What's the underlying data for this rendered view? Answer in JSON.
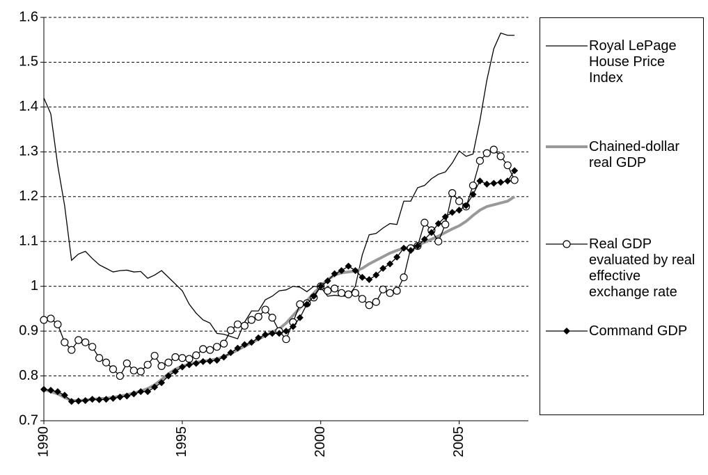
{
  "chart_data": {
    "type": "line",
    "x": [
      1990,
      1990.25,
      1990.5,
      1990.75,
      1991,
      1991.25,
      1991.5,
      1991.75,
      1992,
      1992.25,
      1992.5,
      1992.75,
      1993,
      1993.25,
      1993.5,
      1993.75,
      1994,
      1994.25,
      1994.5,
      1994.75,
      1995,
      1995.25,
      1995.5,
      1995.75,
      1996,
      1996.25,
      1996.5,
      1996.75,
      1997,
      1997.25,
      1997.5,
      1997.75,
      1998,
      1998.25,
      1998.5,
      1998.75,
      1999,
      1999.25,
      1999.5,
      1999.75,
      2000,
      2000.25,
      2000.5,
      2000.75,
      2001,
      2001.25,
      2001.5,
      2001.75,
      2002,
      2002.25,
      2002.5,
      2002.75,
      2003,
      2003.25,
      2003.5,
      2003.75,
      2004,
      2004.25,
      2004.5,
      2004.75,
      2005,
      2005.25,
      2005.5,
      2005.75,
      2006,
      2006.25,
      2006.5,
      2006.75,
      2007
    ],
    "series": [
      {
        "name": "Royal LePage House Price Index",
        "color": "#000000",
        "marker": "none",
        "width": 1.3,
        "values": [
          1.42,
          1.385,
          1.27,
          1.18,
          1.058,
          1.072,
          1.078,
          1.062,
          1.048,
          1.04,
          1.032,
          1.035,
          1.036,
          1.032,
          1.033,
          1.018,
          1.025,
          1.035,
          1.02,
          1.005,
          0.99,
          0.96,
          0.94,
          0.925,
          0.918,
          0.895,
          0.893,
          0.888,
          0.883,
          0.92,
          0.945,
          0.945,
          0.97,
          0.978,
          0.99,
          0.992,
          1.0,
          0.998,
          0.988,
          1.0,
          0.998,
          0.978,
          0.98,
          0.978,
          0.978,
          1.0,
          1.07,
          1.115,
          1.118,
          1.13,
          1.14,
          1.138,
          1.19,
          1.19,
          1.22,
          1.225,
          1.24,
          1.25,
          1.255,
          1.275,
          1.302,
          1.29,
          1.295,
          1.37,
          1.46,
          1.53,
          1.565,
          1.56,
          1.56
        ]
      },
      {
        "name": "Chained-dollar real GDP",
        "color": "#999999",
        "marker": "none",
        "width": 4,
        "values": [
          0.77,
          0.765,
          0.76,
          0.752,
          0.745,
          0.745,
          0.746,
          0.748,
          0.749,
          0.75,
          0.752,
          0.755,
          0.758,
          0.762,
          0.766,
          0.772,
          0.78,
          0.792,
          0.805,
          0.815,
          0.822,
          0.826,
          0.83,
          0.833,
          0.835,
          0.838,
          0.843,
          0.85,
          0.858,
          0.866,
          0.874,
          0.882,
          0.89,
          0.898,
          0.905,
          0.918,
          0.935,
          0.952,
          0.968,
          0.985,
          1.0,
          1.015,
          1.025,
          1.03,
          1.032,
          1.034,
          1.04,
          1.05,
          1.058,
          1.066,
          1.074,
          1.08,
          1.085,
          1.088,
          1.092,
          1.098,
          1.105,
          1.112,
          1.12,
          1.128,
          1.135,
          1.145,
          1.158,
          1.17,
          1.178,
          1.182,
          1.186,
          1.19,
          1.2
        ]
      },
      {
        "name": "Real GDP evaluated by real effective exchange rate",
        "color": "#000000",
        "marker": "circle",
        "width": 1.3,
        "values": [
          0.925,
          0.928,
          0.915,
          0.875,
          0.858,
          0.88,
          0.875,
          0.865,
          0.84,
          0.83,
          0.815,
          0.8,
          0.828,
          0.812,
          0.81,
          0.825,
          0.845,
          0.822,
          0.83,
          0.842,
          0.84,
          0.838,
          0.846,
          0.86,
          0.858,
          0.865,
          0.872,
          0.902,
          0.915,
          0.912,
          0.925,
          0.932,
          0.948,
          0.93,
          0.9,
          0.882,
          0.92,
          0.96,
          0.962,
          0.975,
          1.0,
          0.99,
          0.995,
          0.985,
          0.982,
          0.985,
          0.972,
          0.958,
          0.965,
          0.993,
          0.985,
          0.99,
          1.02,
          1.085,
          1.09,
          1.142,
          1.125,
          1.1,
          1.138,
          1.208,
          1.19,
          1.178,
          1.225,
          1.28,
          1.297,
          1.305,
          1.29,
          1.27,
          1.237
        ]
      },
      {
        "name": "Command GDP",
        "color": "#000000",
        "marker": "diamond",
        "width": 1.3,
        "values": [
          0.77,
          0.768,
          0.765,
          0.757,
          0.743,
          0.744,
          0.745,
          0.748,
          0.747,
          0.748,
          0.75,
          0.753,
          0.755,
          0.76,
          0.765,
          0.765,
          0.775,
          0.785,
          0.8,
          0.81,
          0.82,
          0.825,
          0.828,
          0.832,
          0.833,
          0.835,
          0.842,
          0.852,
          0.862,
          0.87,
          0.875,
          0.885,
          0.892,
          0.895,
          0.895,
          0.9,
          0.91,
          0.93,
          0.96,
          0.978,
          1.0,
          1.012,
          1.028,
          1.035,
          1.045,
          1.035,
          1.02,
          1.015,
          1.025,
          1.04,
          1.05,
          1.065,
          1.085,
          1.08,
          1.09,
          1.105,
          1.12,
          1.14,
          1.155,
          1.165,
          1.17,
          1.18,
          1.205,
          1.235,
          1.228,
          1.23,
          1.232,
          1.235,
          1.258
        ]
      }
    ],
    "xlim": [
      1990,
      2007.5
    ],
    "xticks": [
      1990,
      1995,
      2000,
      2005
    ],
    "ylim": [
      0.7,
      1.6
    ],
    "yticks": [
      0.7,
      0.8,
      0.9,
      1,
      1.1,
      1.2,
      1.3,
      1.4,
      1.5,
      1.6
    ],
    "grid": true,
    "legend": "right"
  }
}
